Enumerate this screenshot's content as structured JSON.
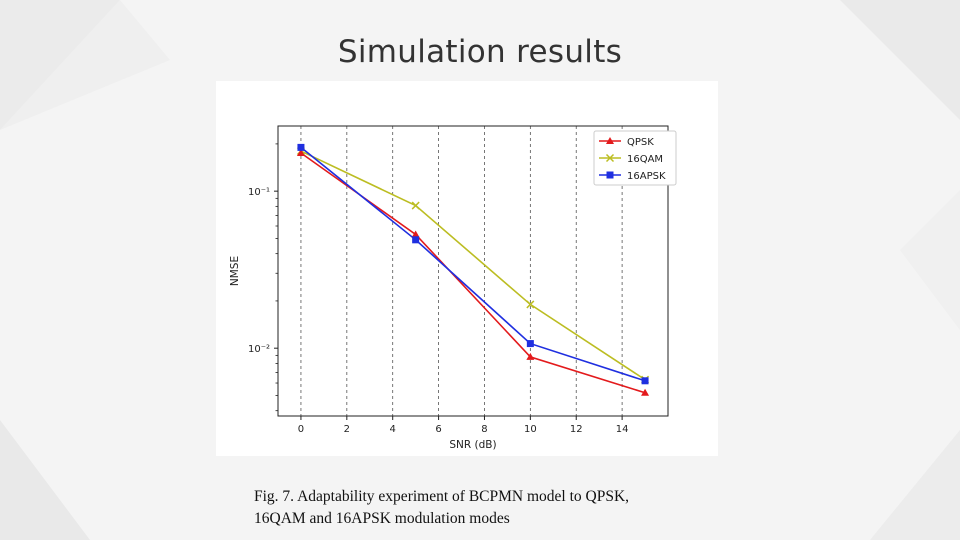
{
  "slide": {
    "title": "Simulation results",
    "caption_line1": "Fig. 7. Adaptability experiment of BCPMN model to QPSK,",
    "caption_line2": "16QAM and 16APSK modulation modes"
  },
  "chart_data": {
    "type": "line",
    "title": "",
    "xlabel": "SNR (dB)",
    "ylabel": "NMSE",
    "y_scale": "log",
    "xlim": [
      -1,
      16
    ],
    "ylim": [
      0.0037,
      0.26
    ],
    "x_ticks": [
      0,
      2,
      4,
      6,
      8,
      10,
      12,
      14
    ],
    "x_tick_labels": [
      "0",
      "2",
      "4",
      "6",
      "8",
      "10",
      "12",
      "14"
    ],
    "y_ticks": [
      0.1,
      0.01
    ],
    "y_tick_labels": [
      "10⁻¹",
      "10⁻²"
    ],
    "grid": true,
    "grid_style": "dashed vertical",
    "legend_position": "top-right",
    "x": [
      0,
      5,
      10,
      15
    ],
    "series": [
      {
        "name": "QPSK",
        "color": "#e31a1c",
        "marker": "triangle",
        "values": [
          0.175,
          0.053,
          0.0088,
          0.0052
        ]
      },
      {
        "name": "16QAM",
        "color": "#bcbd22",
        "marker": "x",
        "values": [
          0.18,
          0.081,
          0.019,
          0.0063
        ]
      },
      {
        "name": "16APSK",
        "color": "#1f2fe0",
        "marker": "square",
        "values": [
          0.19,
          0.049,
          0.0107,
          0.0062
        ]
      }
    ]
  }
}
